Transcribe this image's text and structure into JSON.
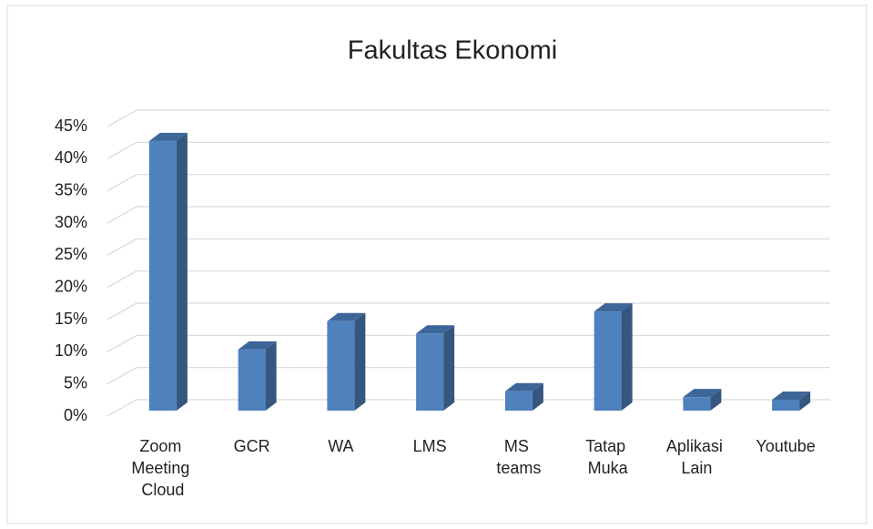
{
  "chart_data": {
    "type": "bar",
    "title": "Fakultas Ekonomi",
    "categories": [
      "Zoom Meeting Cloud",
      "GCR",
      "WA",
      "LMS",
      "MS teams",
      "Tatap Muka",
      "Aplikasi Lain",
      "Youtube"
    ],
    "values": [
      41.9,
      9.5,
      13.9,
      12,
      3,
      15.4,
      2.1,
      1.7
    ],
    "color": "#4f81bd",
    "ylim": [
      0,
      45
    ],
    "yticks": [
      {
        "value": 0,
        "label": "0%"
      },
      {
        "value": 5,
        "label": "5%"
      },
      {
        "value": 10,
        "label": "10%"
      },
      {
        "value": 15,
        "label": "15%"
      },
      {
        "value": 20,
        "label": "20%"
      },
      {
        "value": 25,
        "label": "25%"
      },
      {
        "value": 30,
        "label": "30%"
      },
      {
        "value": 35,
        "label": "35%"
      },
      {
        "value": 40,
        "label": "40%"
      },
      {
        "value": 45,
        "label": "45%"
      }
    ],
    "grid": true
  }
}
